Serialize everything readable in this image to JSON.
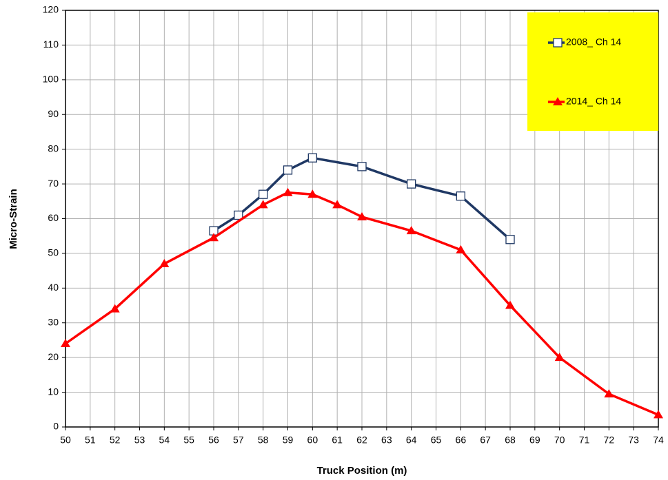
{
  "chart_data": {
    "type": "line",
    "xlabel": "Truck Position (m)",
    "ylabel": "Micro-Strain",
    "series": [
      {
        "name": "2008_ Ch 14",
        "color": "#1f3864",
        "marker": "square",
        "x": [
          56,
          57,
          58,
          59,
          60,
          62,
          64,
          66,
          68
        ],
        "values": [
          56.5,
          61,
          67,
          74,
          77.5,
          75,
          70,
          66.5,
          54
        ]
      },
      {
        "name": "2014_ Ch 14",
        "color": "#ff0000",
        "marker": "triangle",
        "x": [
          50,
          52,
          54,
          56,
          58,
          59,
          60,
          61,
          62,
          64,
          66,
          68,
          70,
          72,
          74
        ],
        "values": [
          24,
          34,
          47,
          54.5,
          64,
          67.5,
          67,
          64,
          60.5,
          56.5,
          51,
          35,
          20,
          9.5,
          3.5
        ]
      }
    ],
    "xlim": [
      50,
      74
    ],
    "xticks": [
      50,
      51,
      52,
      53,
      54,
      55,
      56,
      57,
      58,
      59,
      60,
      61,
      62,
      63,
      64,
      65,
      66,
      67,
      68,
      69,
      70,
      71,
      72,
      73,
      74
    ],
    "ylim": [
      0,
      120
    ],
    "yticks": [
      0,
      10,
      20,
      30,
      40,
      50,
      60,
      70,
      80,
      90,
      100,
      110,
      120
    ],
    "grid": true,
    "legend": "upper right",
    "legend_background": "#ffff00"
  }
}
